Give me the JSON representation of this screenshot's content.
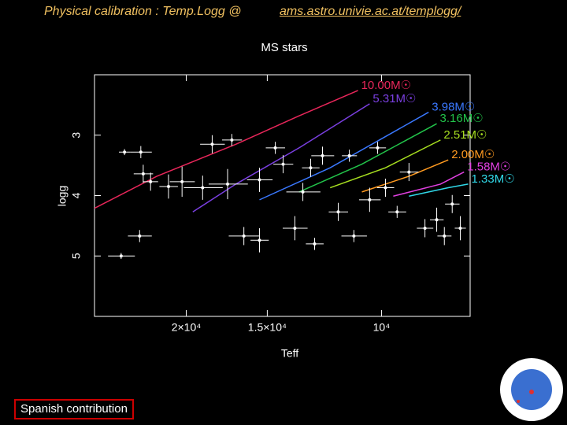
{
  "header": {
    "text": "Physical calibration : Temp.Logg @",
    "link": "ams.astro.univie.ac.at/templogg/"
  },
  "chart_data": {
    "type": "scatter",
    "title": "MS stars",
    "xlabel": "Teff",
    "ylabel": "logg",
    "xscale": "log",
    "xlim": [
      7300,
      27700
    ],
    "x_reversed": true,
    "xticks": [
      {
        "value": 20000,
        "label": "2×10⁴"
      },
      {
        "value": 15000,
        "label": "1.5×10⁴"
      },
      {
        "value": 10000,
        "label": "10⁴"
      }
    ],
    "ylim": [
      2,
      6
    ],
    "y_reversed": true,
    "yticks": [
      3,
      4,
      5
    ],
    "points": {
      "color": "#ffffff",
      "x": [
        25200,
        23600,
        23300,
        24900,
        23500,
        22700,
        21300,
        20300,
        18870,
        18240,
        17270,
        17010,
        16300,
        15420,
        14580,
        13600,
        13220,
        12680,
        12330,
        11660,
        11030,
        10430,
        9860,
        9460,
        9070,
        8570,
        8220,
        8000,
        7780,
        7560,
        15420,
        14180,
        12860,
        11210,
        10140
      ],
      "y": [
        5.0,
        4.67,
        3.64,
        3.28,
        3.28,
        3.77,
        3.85,
        3.77,
        3.87,
        3.15,
        3.81,
        3.08,
        4.67,
        4.74,
        3.21,
        4.54,
        3.94,
        4.8,
        3.34,
        4.27,
        4.67,
        4.07,
        3.87,
        4.27,
        3.61,
        4.54,
        4.4,
        4.67,
        4.14,
        4.54,
        3.74,
        3.48,
        3.54,
        3.34,
        3.21
      ],
      "xerr": [
        1200,
        1000,
        800,
        500,
        900,
        600,
        700,
        900,
        1300,
        800,
        1200,
        600,
        900,
        500,
        500,
        600,
        800,
        400,
        500,
        400,
        500,
        400,
        300,
        300,
        300,
        250,
        200,
        200,
        200,
        150,
        700,
        500,
        400,
        300,
        300
      ],
      "yerr": [
        0.05,
        0.1,
        0.15,
        0.05,
        0.1,
        0.15,
        0.2,
        0.25,
        0.2,
        0.15,
        0.25,
        0.1,
        0.15,
        0.2,
        0.1,
        0.2,
        0.15,
        0.1,
        0.15,
        0.15,
        0.1,
        0.2,
        0.15,
        0.1,
        0.15,
        0.15,
        0.2,
        0.15,
        0.15,
        0.2,
        0.2,
        0.15,
        0.15,
        0.1,
        0.1
      ]
    },
    "series": [
      {
        "name": "10.00M☉",
        "color": "#e8265a",
        "x": [
          27700,
          22200,
          16770,
          13400,
          10870
        ],
        "values": [
          4.21,
          3.68,
          3.15,
          2.68,
          2.26
        ]
      },
      {
        "name": "5.31M☉",
        "color": "#7a3fe0",
        "x": [
          19540,
          16770,
          13400,
          10430
        ],
        "values": [
          4.27,
          3.81,
          3.21,
          2.48
        ]
      },
      {
        "name": "3.98M☉",
        "color": "#3a78ff",
        "x": [
          15420,
          12000,
          8460
        ],
        "values": [
          4.07,
          3.54,
          2.62
        ]
      },
      {
        "name": "3.16M☉",
        "color": "#22c44a",
        "x": [
          13400,
          10720,
          8220
        ],
        "values": [
          3.94,
          3.48,
          2.81
        ]
      },
      {
        "name": "2.51M☉",
        "color": "#a8e020",
        "x": [
          12000,
          9860,
          8110
        ],
        "values": [
          3.87,
          3.54,
          3.08
        ]
      },
      {
        "name": "2.00M☉",
        "color": "#ff9a20",
        "x": [
          10720,
          9070,
          7890
        ],
        "values": [
          3.94,
          3.68,
          3.41
        ]
      },
      {
        "name": "1.58M☉",
        "color": "#e040e0",
        "x": [
          9590,
          8110,
          7460
        ],
        "values": [
          4.01,
          3.81,
          3.61
        ]
      },
      {
        "name": "1.33M☉",
        "color": "#30d8e8",
        "x": [
          9070,
          7890,
          7350
        ],
        "values": [
          4.01,
          3.87,
          3.81
        ]
      }
    ]
  },
  "footer": {
    "button": "Spanish contribution"
  }
}
